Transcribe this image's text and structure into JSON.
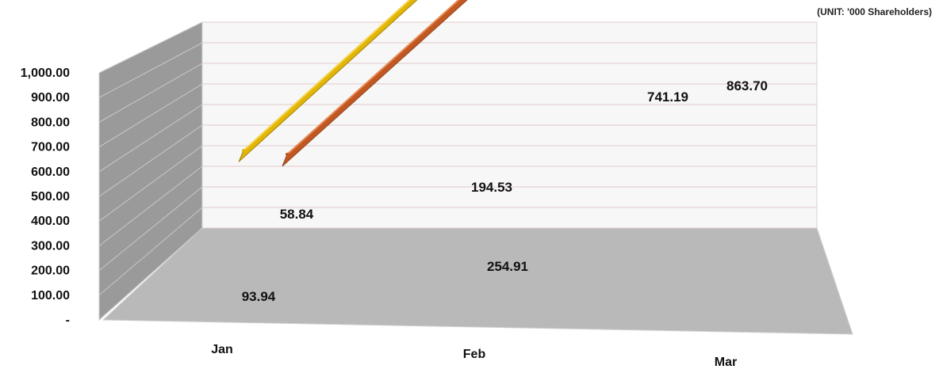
{
  "unit_note": "(UNIT: '000 Shareholders)",
  "chart_data": {
    "type": "line",
    "style": "3d",
    "categories": [
      "Jan",
      "Feb",
      "Mar"
    ],
    "series": [
      {
        "color": "#c0531e",
        "values": [
          58.84,
          194.53,
          741.19
        ]
      },
      {
        "color": "#e0b400",
        "values": [
          93.94,
          254.91,
          863.7
        ]
      }
    ],
    "y_ticks": [
      "-",
      "100.00",
      "200.00",
      "300.00",
      "400.00",
      "500.00",
      "600.00",
      "700.00",
      "800.00",
      "900.00",
      "1,000.00"
    ],
    "ylim": [
      0,
      1000
    ],
    "data_labels": {
      "back": [
        "58.84",
        "194.53",
        "741.19"
      ],
      "front": [
        "93.94",
        "254.91",
        "863.70"
      ]
    },
    "grid": true,
    "legend": "none"
  }
}
